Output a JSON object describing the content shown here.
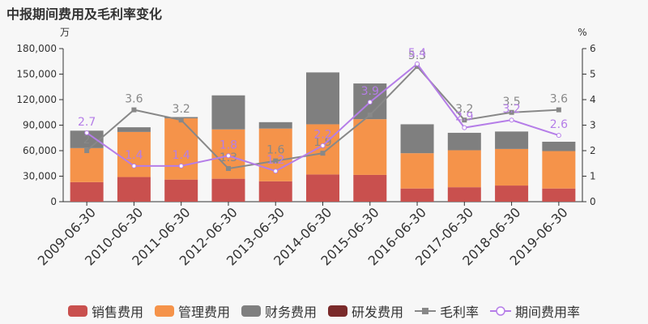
{
  "title": "中报期间费用及毛利率变化",
  "chart_data": {
    "type": "bar",
    "stacked": true,
    "categories": [
      "2009-06-30",
      "2010-06-30",
      "2011-06-30",
      "2012-06-30",
      "2013-06-30",
      "2014-06-30",
      "2015-06-30",
      "2016-06-30",
      "2017-06-30",
      "2018-06-30",
      "2019-06-30"
    ],
    "series": [
      {
        "name": "销售费用",
        "color": "#c9504e",
        "axis": "left",
        "values": [
          23000,
          29000,
          26000,
          27000,
          24000,
          32000,
          31500,
          15500,
          17000,
          19000,
          15500
        ]
      },
      {
        "name": "管理费用",
        "color": "#f5934a",
        "axis": "left",
        "values": [
          40000,
          53000,
          72000,
          58000,
          62000,
          59000,
          65500,
          41500,
          43500,
          43000,
          44000
        ]
      },
      {
        "name": "财务费用",
        "color": "#7f7f7f",
        "axis": "left",
        "values": [
          20500,
          5500,
          1500,
          40000,
          7500,
          61000,
          42000,
          34000,
          20500,
          20500,
          11000
        ]
      },
      {
        "name": "研发费用",
        "color": "#7a2a2a",
        "axis": "left",
        "values": [
          0,
          0,
          0,
          0,
          0,
          0,
          0,
          0,
          0,
          0,
          0
        ]
      }
    ],
    "lines": [
      {
        "name": "毛利率",
        "color": "#888888",
        "marker": "square",
        "axis": "right",
        "values": [
          2.0,
          3.6,
          3.2,
          1.3,
          1.6,
          1.9,
          3.4,
          5.3,
          3.2,
          3.5,
          3.6
        ],
        "labels": [
          "2",
          "3.6",
          "3.2",
          "1.3",
          "1.6",
          "1.9",
          "",
          "5.3",
          "3.2",
          "3.5",
          "3.6"
        ]
      },
      {
        "name": "期间费用率",
        "color": "#b57de8",
        "marker": "circle",
        "axis": "right",
        "values": [
          2.7,
          1.4,
          1.4,
          1.8,
          1.2,
          2.2,
          3.9,
          5.4,
          2.9,
          3.2,
          2.6
        ],
        "labels": [
          "2.7",
          "1.4",
          "1.4",
          "1.8",
          "1.2",
          "2.2",
          "3.9",
          "5.4",
          "2.9",
          "3.2",
          "2.6"
        ]
      }
    ],
    "ylabel_left": "万",
    "ylabel_right": "%",
    "ylim_left": [
      0,
      180000
    ],
    "yticks_left": [
      "0",
      "30,000",
      "60,000",
      "90,000",
      "120,000",
      "150,000",
      "180,000"
    ],
    "ylim_right": [
      0,
      6
    ],
    "yticks_right": [
      "0",
      "1",
      "2",
      "3",
      "4",
      "5",
      "6"
    ],
    "grid": false,
    "legend_position": "bottom"
  }
}
